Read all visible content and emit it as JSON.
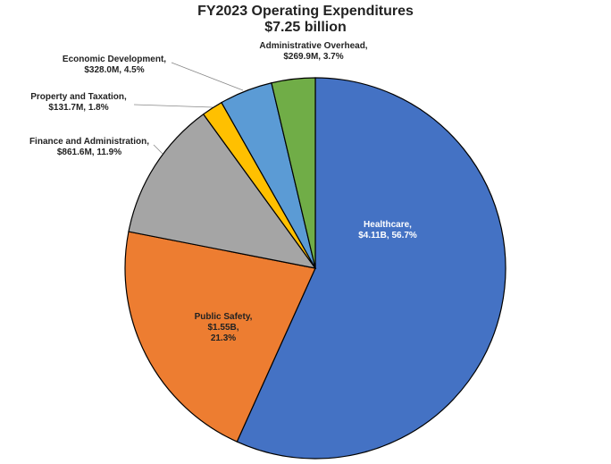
{
  "chart_data": {
    "type": "pie",
    "title": "FY2023 Operating Expenditures",
    "subtitle": "$7.25 billion",
    "categories": [
      "Healthcare,",
      "Public Safety,",
      "Finance and Administration,",
      "Property and Taxation,",
      "Economic Development,",
      "Administrative Overhead,"
    ],
    "values": [
      56.7,
      21.3,
      11.9,
      1.8,
      4.5,
      3.7
    ],
    "value_labels": [
      "$4.11B, 56.7%",
      "$1.55B,\n21.3%",
      "$861.6M, 11.9%",
      "$131.7M, 1.8%",
      "$328.0M, 4.5%",
      "$269.9M, 3.7%"
    ],
    "colors": [
      "#4472c4",
      "#ed7d31",
      "#a5a5a5",
      "#ffc000",
      "#5b9bd5",
      "#70ad47"
    ]
  }
}
